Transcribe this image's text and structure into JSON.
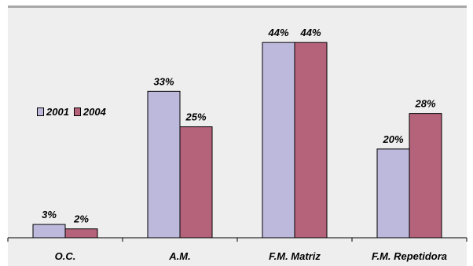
{
  "chart_data": {
    "type": "bar",
    "title": "",
    "xlabel": "",
    "ylabel": "",
    "categories": [
      "O.C.",
      "A.M.",
      "F.M. Matriz",
      "F.M. Repetidora"
    ],
    "series": [
      {
        "name": "2001",
        "values": [
          3,
          33,
          44,
          20
        ],
        "labels": [
          "3%",
          "33%",
          "44%",
          "20%"
        ],
        "color": "#bdb9dd"
      },
      {
        "name": "2004",
        "values": [
          2,
          25,
          44,
          28
        ],
        "labels": [
          "2%",
          "25%",
          "44%",
          "28%"
        ],
        "color": "#b5637a"
      }
    ],
    "ylim": [
      0,
      46.5
    ],
    "grid": false,
    "legend_position": "left"
  },
  "colors": {
    "background": "#eeeeee",
    "bar_outline": "#000000"
  }
}
